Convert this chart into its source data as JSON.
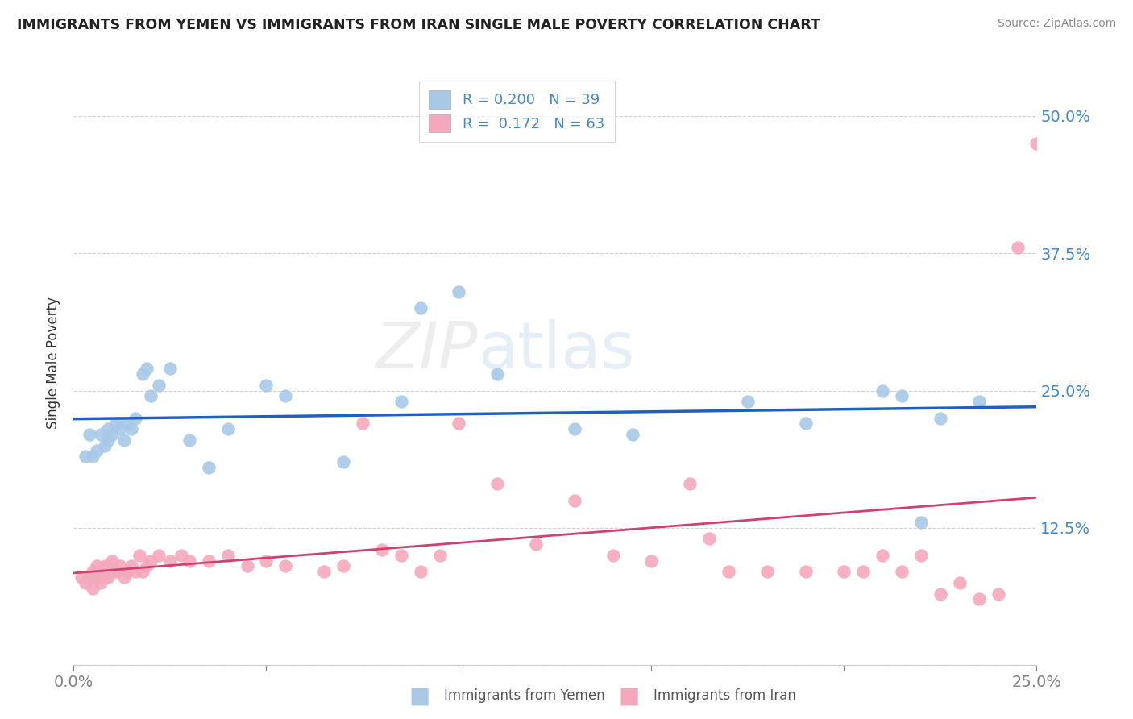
{
  "title": "IMMIGRANTS FROM YEMEN VS IMMIGRANTS FROM IRAN SINGLE MALE POVERTY CORRELATION CHART",
  "source": "Source: ZipAtlas.com",
  "ylabel": "Single Male Poverty",
  "xlim": [
    0.0,
    0.25
  ],
  "ylim": [
    0.0,
    0.55
  ],
  "yticks": [
    0.0,
    0.125,
    0.25,
    0.375,
    0.5
  ],
  "ytick_labels": [
    "",
    "12.5%",
    "25.0%",
    "37.5%",
    "50.0%"
  ],
  "color_yemen": "#a8c8e8",
  "color_iran": "#f4a8bc",
  "line_color_yemen": "#2060c0",
  "line_color_iran": "#d04070",
  "yemen_x": [
    0.003,
    0.004,
    0.005,
    0.006,
    0.007,
    0.008,
    0.009,
    0.009,
    0.01,
    0.011,
    0.012,
    0.013,
    0.014,
    0.015,
    0.016,
    0.018,
    0.019,
    0.02,
    0.022,
    0.025,
    0.03,
    0.035,
    0.04,
    0.05,
    0.055,
    0.07,
    0.085,
    0.09,
    0.1,
    0.11,
    0.13,
    0.145,
    0.175,
    0.19,
    0.21,
    0.215,
    0.22,
    0.225,
    0.235
  ],
  "yemen_y": [
    0.19,
    0.21,
    0.19,
    0.195,
    0.21,
    0.2,
    0.215,
    0.205,
    0.21,
    0.22,
    0.215,
    0.205,
    0.22,
    0.215,
    0.225,
    0.265,
    0.27,
    0.245,
    0.255,
    0.27,
    0.205,
    0.18,
    0.215,
    0.255,
    0.245,
    0.185,
    0.24,
    0.325,
    0.34,
    0.265,
    0.215,
    0.21,
    0.24,
    0.22,
    0.25,
    0.245,
    0.13,
    0.225,
    0.24
  ],
  "iran_x": [
    0.002,
    0.003,
    0.004,
    0.005,
    0.005,
    0.006,
    0.006,
    0.007,
    0.007,
    0.008,
    0.008,
    0.009,
    0.009,
    0.01,
    0.01,
    0.011,
    0.012,
    0.013,
    0.014,
    0.015,
    0.016,
    0.017,
    0.018,
    0.019,
    0.02,
    0.022,
    0.025,
    0.028,
    0.03,
    0.035,
    0.04,
    0.045,
    0.05,
    0.055,
    0.065,
    0.07,
    0.075,
    0.08,
    0.085,
    0.09,
    0.095,
    0.1,
    0.11,
    0.12,
    0.13,
    0.14,
    0.15,
    0.16,
    0.165,
    0.17,
    0.18,
    0.19,
    0.2,
    0.205,
    0.21,
    0.215,
    0.22,
    0.225,
    0.23,
    0.235,
    0.24,
    0.245,
    0.25
  ],
  "iran_y": [
    0.08,
    0.075,
    0.08,
    0.07,
    0.085,
    0.08,
    0.09,
    0.075,
    0.085,
    0.08,
    0.09,
    0.08,
    0.09,
    0.085,
    0.095,
    0.085,
    0.09,
    0.08,
    0.085,
    0.09,
    0.085,
    0.1,
    0.085,
    0.09,
    0.095,
    0.1,
    0.095,
    0.1,
    0.095,
    0.095,
    0.1,
    0.09,
    0.095,
    0.09,
    0.085,
    0.09,
    0.22,
    0.105,
    0.1,
    0.085,
    0.1,
    0.22,
    0.165,
    0.11,
    0.15,
    0.1,
    0.095,
    0.165,
    0.115,
    0.085,
    0.085,
    0.085,
    0.085,
    0.085,
    0.1,
    0.085,
    0.1,
    0.065,
    0.075,
    0.06,
    0.065,
    0.38,
    0.475
  ],
  "legend_text1": "R = 0.200   N = 39",
  "legend_text2": "R =  0.172   N = 63"
}
